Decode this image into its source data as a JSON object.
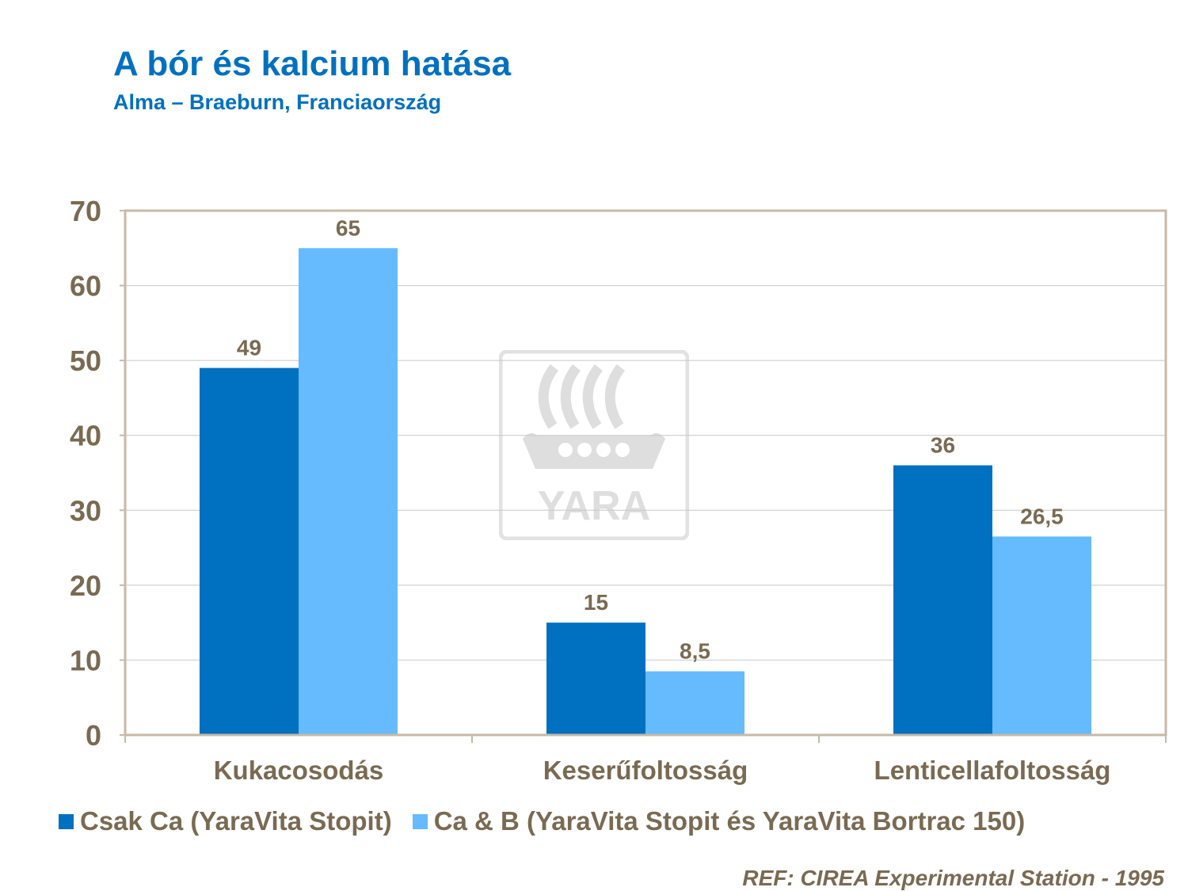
{
  "title": "A bór és kalcium hatása",
  "subtitle": "Alma – Braeburn, Franciaország",
  "reference": "REF: CIREA Experimental Station - 1995",
  "watermark_text": "YARA",
  "colors": {
    "series_dark": "#0070c0",
    "series_light": "#66bbff",
    "text": "#7a6a52",
    "title": "#0070c0",
    "frame": "#c8b9a6",
    "grid": "#c8c8c8"
  },
  "chart_data": {
    "type": "bar",
    "categories": [
      "Kukacosodás",
      "Keserűfoltosság",
      "Lenticellafoltosság"
    ],
    "series": [
      {
        "name": "Csak Ca (YaraVita Stopit)",
        "values": [
          49,
          15,
          36
        ],
        "labels": [
          "49",
          "15",
          "36"
        ]
      },
      {
        "name": "Ca & B (YaraVita Stopit és YaraVita Bortrac 150)",
        "values": [
          65,
          8.5,
          26.5
        ],
        "labels": [
          "65",
          "8,5",
          "26,5"
        ]
      }
    ],
    "ylim": [
      0,
      70
    ],
    "yticks": [
      "0",
      "10",
      "20",
      "30",
      "40",
      "50",
      "60",
      "70"
    ],
    "grid": true,
    "legend_position": "bottom"
  }
}
